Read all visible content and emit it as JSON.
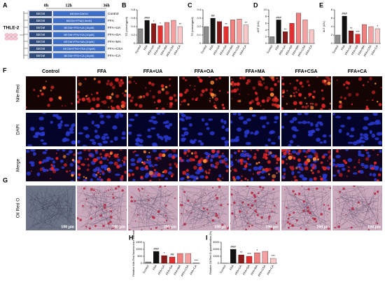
{
  "schematic": {
    "label": "A",
    "times": [
      "0h",
      "12h",
      "36h"
    ],
    "cell_line": "THLE-2",
    "rows": [
      {
        "medium": "BEGM",
        "treatment": "BEGM+DMSO",
        "group": "Control"
      },
      {
        "medium": "BEGM",
        "treatment": "BEGM+FFA(0.5mM)",
        "group": "FFA"
      },
      {
        "medium": "BEGM",
        "treatment": "BEGM+FFA+UA (10μM)",
        "group": "FFA+UA"
      },
      {
        "medium": "BEGM",
        "treatment": "BEGM+FFA+OA (10μM)",
        "group": "FFA+OA"
      },
      {
        "medium": "BEGM",
        "treatment": "BEGM+FFA+MA (10μM)",
        "group": "FFA+MA"
      },
      {
        "medium": "BEGM",
        "treatment": "BEGM+FFA+CSA (10μM)",
        "group": "FFA+CSA"
      },
      {
        "medium": "BEGM",
        "treatment": "BEGM+FFA+CA (10μM)",
        "group": "FFA+CA"
      }
    ]
  },
  "micrographs": {
    "labels": [
      "F",
      "G"
    ],
    "columns": [
      "Control",
      "FFA",
      "FFA+UA",
      "FFA+OA",
      "FFA+MA",
      "FFA+CSA",
      "FFA+CA"
    ],
    "rows": [
      "Nile-Red",
      "DAPI",
      "Merge",
      "Oil Red O"
    ],
    "scale_bar": "100 μm"
  },
  "chart_data": [
    {
      "type": "bar",
      "label": "B",
      "ylabel": "TG (mmol/gprot)",
      "categories": [
        "Control",
        "FFA",
        "FFA+UA",
        "FFA+OA",
        "FFA+MA",
        "FFA+CSA",
        "FFA+CA"
      ],
      "colors": [
        "#8c8c8c",
        "#111111",
        "#8b1a1a",
        "#e03030",
        "#f08080",
        "#f4a0a0",
        "#f8c8c8"
      ],
      "values": [
        0.35,
        0.55,
        0.47,
        0.42,
        0.5,
        0.55,
        0.4
      ],
      "annotations": [
        null,
        "###",
        "*",
        "*",
        null,
        null,
        "**"
      ],
      "ylim": [
        0,
        0.8
      ],
      "yticks": [
        0,
        0.2,
        0.4,
        0.6,
        0.8
      ]
    },
    {
      "type": "bar",
      "label": "C",
      "ylabel": "TC (mmol/gprot)",
      "categories": [
        "Control",
        "FFA",
        "FFA+UA",
        "FFA+OA",
        "FFA+MA",
        "FFA+CSA",
        "FFA+CA"
      ],
      "colors": [
        "#8c8c8c",
        "#111111",
        "#8b1a1a",
        "#e03030",
        "#f08080",
        "#f4a0a0",
        "#f8c8c8"
      ],
      "values": [
        0.2,
        0.3,
        0.26,
        0.2,
        0.28,
        0.29,
        0.22
      ],
      "annotations": [
        null,
        "##",
        null,
        "**",
        null,
        null,
        "**"
      ],
      "ylim": [
        0,
        0.4
      ],
      "yticks": [
        0,
        0.1,
        0.2,
        0.3,
        0.4
      ]
    },
    {
      "type": "bar",
      "label": "D",
      "ylabel": "AST (U/L)",
      "categories": [
        "Control",
        "FFA",
        "FFA+UA",
        "FFA+OA",
        "FFA+MA",
        "FFA+CSA",
        "FFA+CA"
      ],
      "colors": [
        "#8c8c8c",
        "#111111",
        "#8b1a1a",
        "#e03030",
        "#f08080",
        "#f4a0a0",
        "#f8c8c8"
      ],
      "values": [
        2,
        7,
        3.5,
        6,
        9,
        7,
        4
      ],
      "annotations": [
        null,
        "###",
        "**",
        null,
        null,
        null,
        null
      ],
      "ylim": [
        0,
        10
      ],
      "yticks": [
        0,
        2,
        4,
        6,
        8,
        10
      ]
    },
    {
      "type": "bar",
      "label": "E",
      "ylabel": "ALT (U/L)",
      "categories": [
        "Control",
        "FFA",
        "FFA+UA",
        "FFA+OA",
        "FFA+MA",
        "FFA+CSA",
        "FFA+CA"
      ],
      "colors": [
        "#8c8c8c",
        "#111111",
        "#8b1a1a",
        "#e03030",
        "#f08080",
        "#f4a0a0",
        "#f8c8c8"
      ],
      "values": [
        2,
        6.5,
        3,
        2.2,
        4.5,
        4,
        3.5
      ],
      "annotations": [
        null,
        "###",
        "**",
        "***",
        null,
        null,
        "*"
      ],
      "ylim": [
        0,
        8
      ],
      "yticks": [
        0,
        2,
        4,
        6,
        8
      ]
    },
    {
      "type": "bar",
      "label": "H",
      "ylabel": "Relative Nile-Red fluorescence intensity",
      "categories": [
        "Control",
        "FFA",
        "FFA+UA",
        "FFA+OA",
        "FFA+MA",
        "FFA+CSA",
        "FFA+CA"
      ],
      "colors": [
        "#8c8c8c",
        "#111111",
        "#8b1a1a",
        "#e03030",
        "#f08080",
        "#f4a0a0",
        "#f8c8c8"
      ],
      "values": [
        100,
        850,
        550,
        450,
        700,
        700,
        30
      ],
      "annotations": [
        null,
        "###",
        "*",
        "##",
        null,
        null,
        "***"
      ],
      "ylim": [
        0,
        1500
      ],
      "yticks": [
        0,
        500,
        1000,
        1500
      ]
    },
    {
      "type": "bar",
      "label": "I",
      "ylabel": "Relative Oil Red O quantification (%)",
      "categories": [
        "Control",
        "FFA",
        "FFA+UA",
        "FFA+OA",
        "FFA+MA",
        "FFA+CSA",
        "FFA+CA"
      ],
      "colors": [
        "#8c8c8c",
        "#111111",
        "#8b1a1a",
        "#e03030",
        "#f08080",
        "#f4a0a0",
        "#f8c8c8"
      ],
      "values": [
        10,
        2000,
        1200,
        1000,
        1500,
        1700,
        700
      ],
      "annotations": [
        null,
        "###",
        "**",
        "***",
        "*",
        null,
        "***"
      ],
      "ylim": [
        0,
        3000
      ],
      "yticks": [
        0,
        1000,
        2000,
        3000
      ]
    }
  ]
}
